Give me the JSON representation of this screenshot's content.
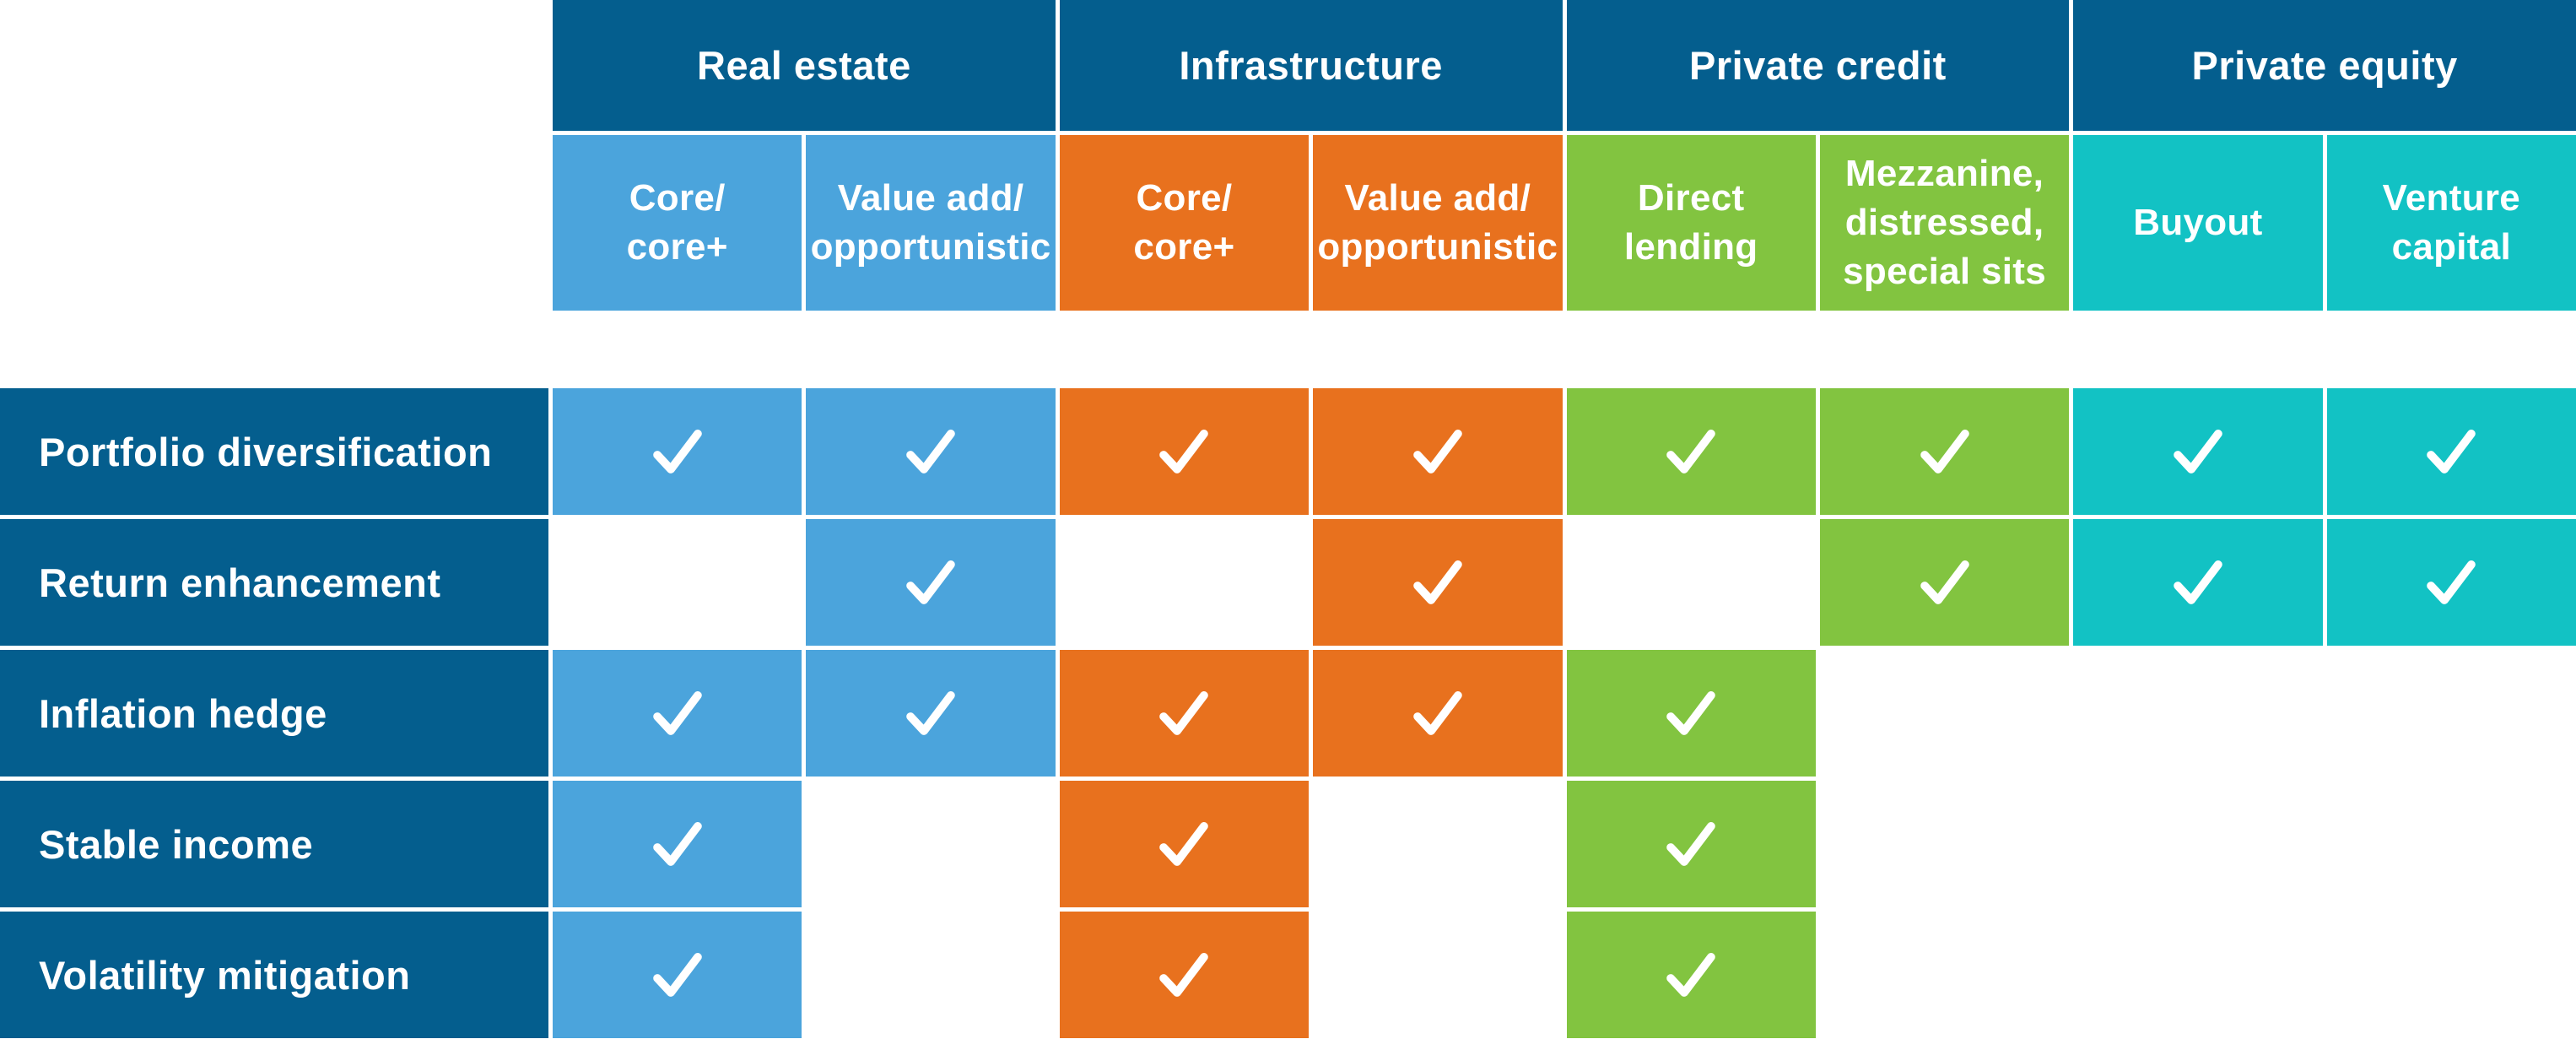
{
  "page": {
    "background": "#FFFFFF"
  },
  "colors": {
    "dark_blue": "#045E8E",
    "light_blue": "#4BA4DC",
    "orange": "#E8711E",
    "green": "#82C440",
    "teal": "#12C2C4",
    "check": "#FFFFFF"
  },
  "table": {
    "groups": [
      {
        "label": "Real estate",
        "slug": "real-estate"
      },
      {
        "label": "Infrastructure",
        "slug": "infrastructure"
      },
      {
        "label": "Private credit",
        "slug": "private-credit"
      },
      {
        "label": "Private equity",
        "slug": "private-equity"
      }
    ],
    "columns": [
      {
        "label": "Core/\ncore+",
        "slug": "real-estate-core-core-plus",
        "color_key": "light_blue"
      },
      {
        "label": "Value add/\nopportunistic",
        "slug": "real-estate-value-add-opportunistic",
        "color_key": "light_blue"
      },
      {
        "label": "Core/\ncore+",
        "slug": "infrastructure-core-core-plus",
        "color_key": "orange"
      },
      {
        "label": "Value add/\nopportunistic",
        "slug": "infrastructure-value-add-opportunistic",
        "color_key": "orange"
      },
      {
        "label": "Direct\nlending",
        "slug": "direct-lending",
        "color_key": "green"
      },
      {
        "label": "Mezzanine,\ndistressed,\nspecial sits",
        "slug": "mezzanine-distressed-special-sits",
        "color_key": "green"
      },
      {
        "label": "Buyout",
        "slug": "buyout",
        "color_key": "teal"
      },
      {
        "label": "Venture\ncapital",
        "slug": "venture-capital",
        "color_key": "teal"
      }
    ],
    "rows": [
      {
        "label": "Portfolio diversification",
        "slug": "portfolio-diversification",
        "checks": [
          1,
          1,
          1,
          1,
          1,
          1,
          1,
          1
        ]
      },
      {
        "label": "Return enhancement",
        "slug": "return-enhancement",
        "checks": [
          0,
          1,
          0,
          1,
          0,
          1,
          1,
          1
        ]
      },
      {
        "label": "Inflation hedge",
        "slug": "inflation-hedge",
        "checks": [
          1,
          1,
          1,
          1,
          1,
          0,
          0,
          0
        ]
      },
      {
        "label": "Stable income",
        "slug": "stable-income",
        "checks": [
          1,
          0,
          1,
          0,
          1,
          0,
          0,
          0
        ]
      },
      {
        "label": "Volatility mitigation",
        "slug": "volatility-mitigation",
        "checks": [
          1,
          0,
          1,
          0,
          1,
          0,
          0,
          0
        ]
      }
    ],
    "check_icon": "checkmark"
  },
  "chart_data": {
    "type": "table",
    "title": "",
    "column_groups": [
      "Real estate",
      "Real estate",
      "Infrastructure",
      "Infrastructure",
      "Private credit",
      "Private credit",
      "Private equity",
      "Private equity"
    ],
    "columns": [
      "Core/core+",
      "Value add/opportunistic",
      "Core/core+",
      "Value add/opportunistic",
      "Direct lending",
      "Mezzanine, distressed, special sits",
      "Buyout",
      "Venture capital"
    ],
    "rows": [
      "Portfolio diversification",
      "Return enhancement",
      "Inflation hedge",
      "Stable income",
      "Volatility mitigation"
    ],
    "values": [
      [
        1,
        1,
        1,
        1,
        1,
        1,
        1,
        1
      ],
      [
        0,
        1,
        0,
        1,
        0,
        1,
        1,
        1
      ],
      [
        1,
        1,
        1,
        1,
        1,
        0,
        0,
        0
      ],
      [
        1,
        0,
        1,
        0,
        1,
        0,
        0,
        0
      ],
      [
        1,
        0,
        1,
        0,
        1,
        0,
        0,
        0
      ]
    ],
    "legend_position": "none",
    "grid": false
  }
}
